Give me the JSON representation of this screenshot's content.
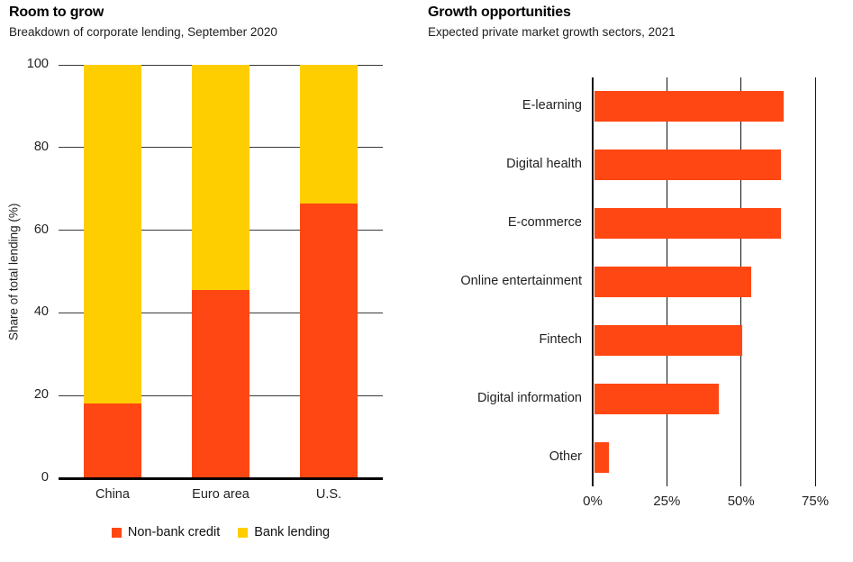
{
  "chart_data": [
    {
      "type": "bar",
      "stacked": true,
      "orientation": "vertical",
      "title": "Room to grow",
      "subtitle": "Breakdown of corporate lending, September 2020",
      "ylabel": "Share of total lending (%)",
      "ylim": [
        0,
        100
      ],
      "yticks": [
        0,
        20,
        40,
        60,
        80,
        100
      ],
      "categories": [
        "China",
        "Euro area",
        "U.S."
      ],
      "series": [
        {
          "name": "Non-bank credit",
          "color": "#FF4713",
          "values": [
            18,
            45.5,
            66.5
          ]
        },
        {
          "name": "Bank lending",
          "color": "#FFCE00",
          "values": [
            82,
            54.5,
            33.5
          ]
        }
      ],
      "legend_position": "bottom",
      "grid": "horizontal"
    },
    {
      "type": "bar",
      "stacked": false,
      "orientation": "horizontal",
      "title": "Growth opportunities",
      "subtitle": "Expected private market growth sectors, 2021",
      "categories": [
        "E-learning",
        "Digital health",
        "E-commerce",
        "Online entertainment",
        "Fintech",
        "Digital information",
        "Other"
      ],
      "values": [
        64,
        63,
        63,
        53,
        50,
        42,
        5
      ],
      "bar_color": "#FF4713",
      "xlim": [
        0,
        85
      ],
      "xticks": [
        {
          "value": 0,
          "label": "0%"
        },
        {
          "value": 25,
          "label": "25%"
        },
        {
          "value": 50,
          "label": "50%"
        },
        {
          "value": 75,
          "label": "75%"
        }
      ],
      "grid": "vertical"
    }
  ],
  "colors": {
    "accent_red": "#FF4713",
    "accent_yellow": "#FFCE00",
    "grid_left": "#3a3a3a",
    "grid_right": "#111111",
    "axis": "#000000",
    "text": "#222222"
  }
}
